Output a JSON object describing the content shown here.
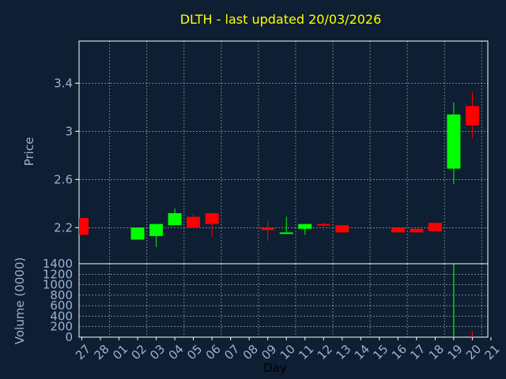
{
  "chart_data": [
    {
      "type": "candlestick",
      "title": "DLTH - last updated 20/03/2026",
      "ylabel": "Price",
      "ylim": [
        1.9,
        3.75
      ],
      "yticks": [
        "2.2",
        "2.6",
        "3",
        "3.4"
      ],
      "ytick_values": [
        2.2,
        2.6,
        3.0,
        3.4
      ],
      "grid": true,
      "colors": {
        "up": "#00ff00",
        "down": "#ff0000",
        "background": "#0e1e33",
        "plot_border": "#ffffff",
        "grid": "#ffffff"
      },
      "candles": [
        {
          "day": "27",
          "open": 2.28,
          "high": 2.28,
          "low": 2.14,
          "close": 2.14
        },
        {
          "day": "02",
          "open": 2.1,
          "high": 2.2,
          "low": 2.1,
          "close": 2.2
        },
        {
          "day": "03",
          "open": 2.13,
          "high": 2.23,
          "low": 2.04,
          "close": 2.23
        },
        {
          "day": "04",
          "open": 2.22,
          "high": 2.36,
          "low": 2.22,
          "close": 2.32
        },
        {
          "day": "05",
          "open": 2.29,
          "high": 2.31,
          "low": 2.2,
          "close": 2.2
        },
        {
          "day": "06",
          "open": 2.32,
          "high": 2.32,
          "low": 2.12,
          "close": 2.23
        },
        {
          "day": "09",
          "open": 2.2,
          "high": 2.26,
          "low": 2.09,
          "close": 2.18
        },
        {
          "day": "10",
          "open": 2.15,
          "high": 2.29,
          "low": 2.15,
          "close": 2.16
        },
        {
          "day": "11",
          "open": 2.19,
          "high": 2.23,
          "low": 2.14,
          "close": 2.23
        },
        {
          "day": "12",
          "open": 2.23,
          "high": 2.24,
          "low": 2.18,
          "close": 2.22
        },
        {
          "day": "13",
          "open": 2.22,
          "high": 2.22,
          "low": 2.16,
          "close": 2.16
        },
        {
          "day": "16",
          "open": 2.2,
          "high": 2.2,
          "low": 2.16,
          "close": 2.16
        },
        {
          "day": "17",
          "open": 2.19,
          "high": 2.19,
          "low": 2.16,
          "close": 2.16
        },
        {
          "day": "18",
          "open": 2.24,
          "high": 2.24,
          "low": 2.16,
          "close": 2.17
        },
        {
          "day": "19",
          "open": 2.69,
          "high": 3.24,
          "low": 2.56,
          "close": 3.14
        },
        {
          "day": "20",
          "open": 3.21,
          "high": 3.33,
          "low": 2.94,
          "close": 3.05
        }
      ]
    },
    {
      "type": "bar",
      "ylabel": "Volume (0000)",
      "xlabel": "Day",
      "ylim": [
        0,
        1400
      ],
      "yticks": [
        "0",
        "200",
        "400",
        "600",
        "800",
        "1000",
        "1200",
        "1400"
      ],
      "ytick_values": [
        0,
        200,
        400,
        600,
        800,
        1000,
        1200,
        1400
      ],
      "x_tick_labels": [
        "27",
        "28",
        "01",
        "02",
        "03",
        "04",
        "05",
        "06",
        "07",
        "08",
        "09",
        "10",
        "11",
        "12",
        "13",
        "14",
        "15",
        "16",
        "17",
        "18",
        "19",
        "20",
        "21"
      ],
      "grid": true,
      "bars": [
        {
          "day": "19",
          "value": 1390,
          "direction": "up"
        },
        {
          "day": "20",
          "value": 110,
          "direction": "down"
        }
      ]
    }
  ]
}
